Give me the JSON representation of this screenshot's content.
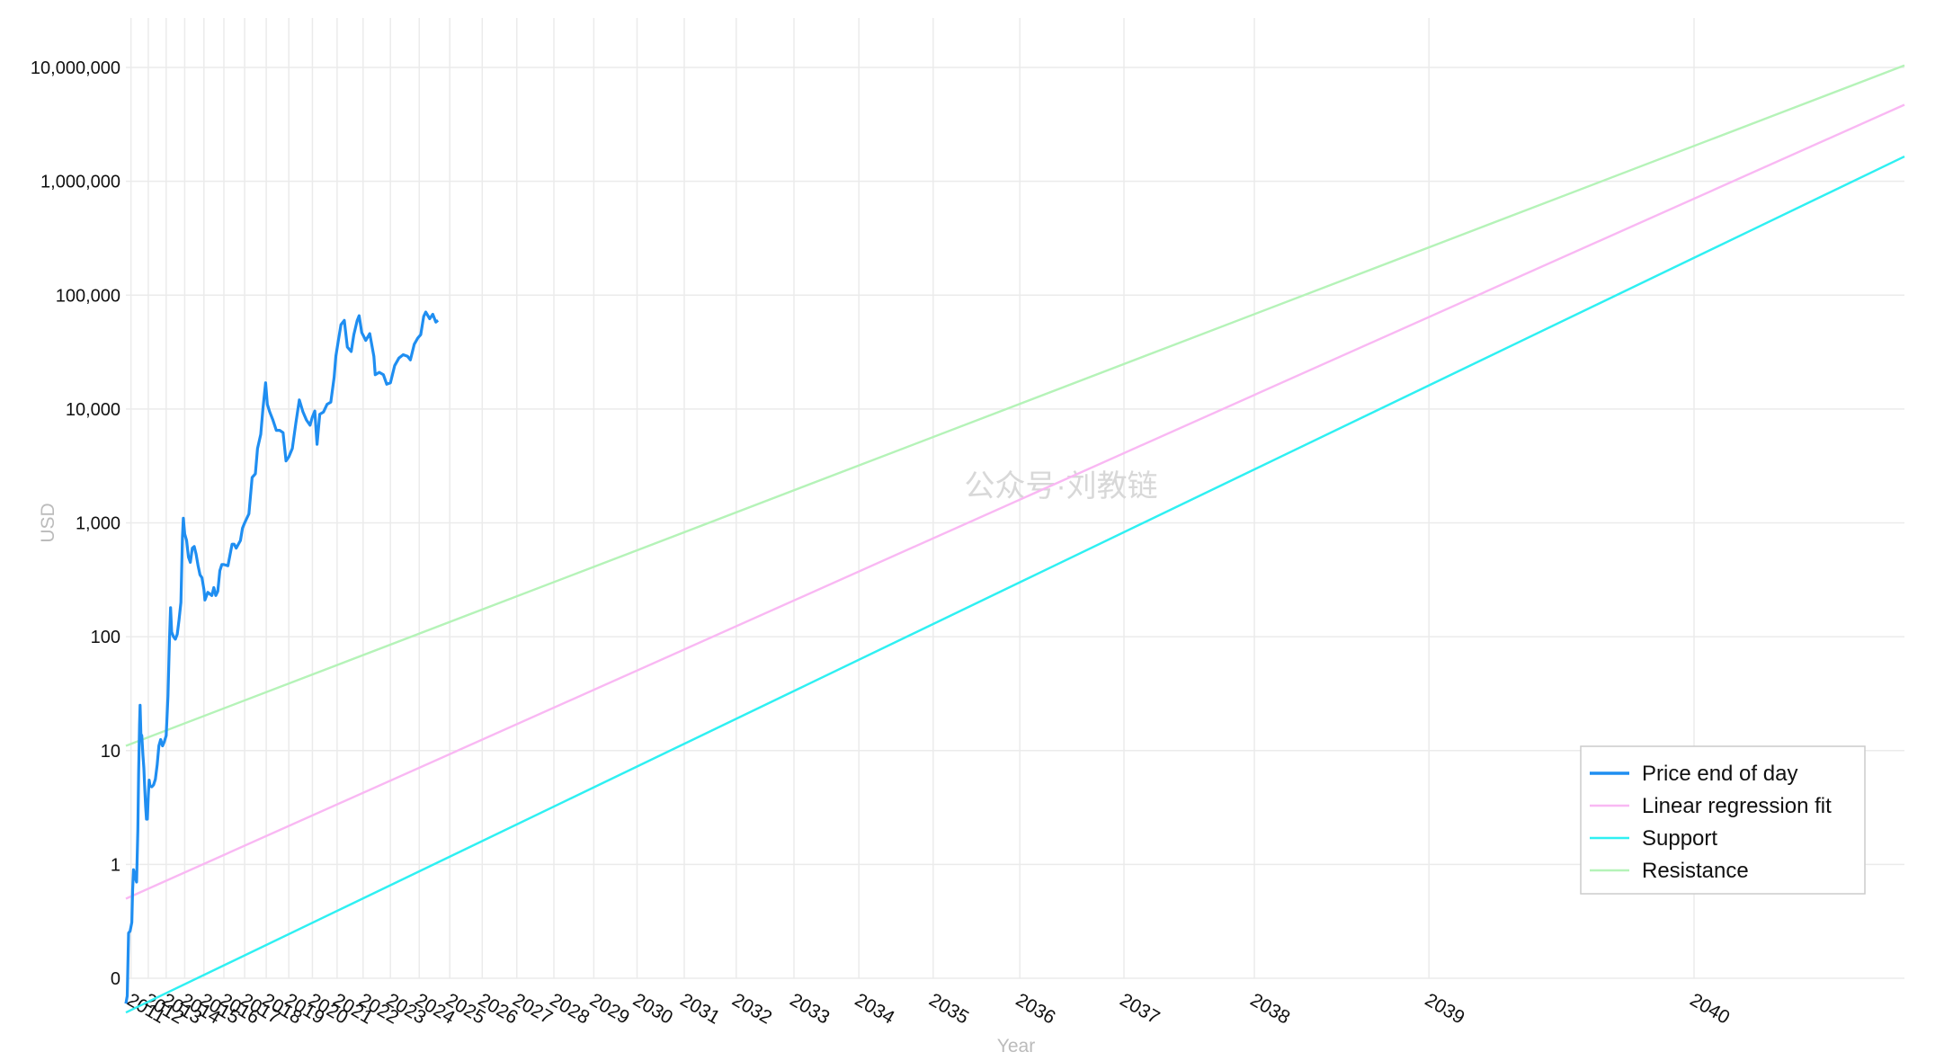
{
  "chart_data": {
    "type": "line",
    "title": "",
    "xlabel": "Year",
    "ylabel": "USD",
    "y_scale": "log",
    "x_scale": "log-time",
    "ylim": [
      0.1,
      10000000
    ],
    "y_ticks": [
      {
        "value": 0.1,
        "label": "0"
      },
      {
        "value": 1,
        "label": "1"
      },
      {
        "value": 10,
        "label": "10"
      },
      {
        "value": 100,
        "label": "100"
      },
      {
        "value": 1000,
        "label": "1,000"
      },
      {
        "value": 10000,
        "label": "10,000"
      },
      {
        "value": 100000,
        "label": "100,000"
      },
      {
        "value": 1000000,
        "label": "1,000,000"
      },
      {
        "value": 10000000,
        "label": "10,000,000"
      }
    ],
    "x_ticks": [
      "2011",
      "2012",
      "2013",
      "2014",
      "2015",
      "2016",
      "2017",
      "2018",
      "2019",
      "2020",
      "2021",
      "2022",
      "2023",
      "2024",
      "2025",
      "2026",
      "2027",
      "2028",
      "2029",
      "2030",
      "2031",
      "2032",
      "2033",
      "2034",
      "2035",
      "2036",
      "2037",
      "2038",
      "2039",
      "2040"
    ],
    "grid": true,
    "legend_position": "bottom-right",
    "watermark": "公众号·刘教链",
    "series": [
      {
        "name": "Price end of day",
        "color": "#1f8ef1",
        "points": [
          [
            2010.7,
            0.06
          ],
          [
            2010.78,
            0.07
          ],
          [
            2010.86,
            0.25
          ],
          [
            2010.95,
            0.26
          ],
          [
            2011.05,
            0.31
          ],
          [
            2011.1,
            0.6
          ],
          [
            2011.15,
            0.9
          ],
          [
            2011.25,
            0.78
          ],
          [
            2011.3,
            0.72
          ],
          [
            2011.33,
            0.7
          ],
          [
            2011.4,
            2.0
          ],
          [
            2011.45,
            6.5
          ],
          [
            2011.5,
            17.0
          ],
          [
            2011.53,
            25.0
          ],
          [
            2011.58,
            14.0
          ],
          [
            2011.63,
            13.5
          ],
          [
            2011.7,
            9.0
          ],
          [
            2011.75,
            7.0
          ],
          [
            2011.8,
            4.6
          ],
          [
            2011.85,
            3.2
          ],
          [
            2011.9,
            2.5
          ],
          [
            2011.95,
            2.5
          ],
          [
            2012.0,
            4.0
          ],
          [
            2012.05,
            5.5
          ],
          [
            2012.1,
            4.9
          ],
          [
            2012.2,
            4.8
          ],
          [
            2012.3,
            5.0
          ],
          [
            2012.4,
            5.6
          ],
          [
            2012.5,
            7.5
          ],
          [
            2012.6,
            11.0
          ],
          [
            2012.7,
            12.5
          ],
          [
            2012.8,
            11.0
          ],
          [
            2012.9,
            12.0
          ],
          [
            2013.0,
            13.5
          ],
          [
            2013.1,
            30.0
          ],
          [
            2013.18,
            90.0
          ],
          [
            2013.24,
            180.0
          ],
          [
            2013.3,
            110.0
          ],
          [
            2013.4,
            100.0
          ],
          [
            2013.5,
            95.0
          ],
          [
            2013.6,
            105.0
          ],
          [
            2013.7,
            140.0
          ],
          [
            2013.8,
            200.0
          ],
          [
            2013.88,
            750.0
          ],
          [
            2013.93,
            1100.0
          ],
          [
            2014.0,
            800.0
          ],
          [
            2014.1,
            700.0
          ],
          [
            2014.2,
            500.0
          ],
          [
            2014.3,
            450.0
          ],
          [
            2014.4,
            600.0
          ],
          [
            2014.5,
            620.0
          ],
          [
            2014.6,
            530.0
          ],
          [
            2014.7,
            420.0
          ],
          [
            2014.8,
            350.0
          ],
          [
            2014.9,
            330.0
          ],
          [
            2015.0,
            260.0
          ],
          [
            2015.05,
            210.0
          ],
          [
            2015.2,
            245.0
          ],
          [
            2015.4,
            230.0
          ],
          [
            2015.5,
            270.0
          ],
          [
            2015.6,
            230.0
          ],
          [
            2015.7,
            250.0
          ],
          [
            2015.8,
            380.0
          ],
          [
            2015.9,
            430.0
          ],
          [
            2016.0,
            430.0
          ],
          [
            2016.2,
            420.0
          ],
          [
            2016.4,
            650.0
          ],
          [
            2016.5,
            650.0
          ],
          [
            2016.6,
            600.0
          ],
          [
            2016.8,
            700.0
          ],
          [
            2016.9,
            900.0
          ],
          [
            2017.0,
            1000.0
          ],
          [
            2017.2,
            1200.0
          ],
          [
            2017.35,
            2500.0
          ],
          [
            2017.5,
            2700.0
          ],
          [
            2017.6,
            4500.0
          ],
          [
            2017.75,
            6000.0
          ],
          [
            2017.85,
            10000.0
          ],
          [
            2017.97,
            17000.0
          ],
          [
            2018.05,
            11000.0
          ],
          [
            2018.15,
            9500.0
          ],
          [
            2018.3,
            8000.0
          ],
          [
            2018.45,
            6500.0
          ],
          [
            2018.6,
            6500.0
          ],
          [
            2018.75,
            6200.0
          ],
          [
            2018.88,
            3500.0
          ],
          [
            2019.0,
            3800.0
          ],
          [
            2019.15,
            4500.0
          ],
          [
            2019.3,
            7500.0
          ],
          [
            2019.45,
            12000.0
          ],
          [
            2019.6,
            9500.0
          ],
          [
            2019.75,
            8000.0
          ],
          [
            2019.9,
            7200.0
          ],
          [
            2020.0,
            8500.0
          ],
          [
            2020.1,
            9600.0
          ],
          [
            2020.19,
            4900.0
          ],
          [
            2020.3,
            9000.0
          ],
          [
            2020.45,
            9400.0
          ],
          [
            2020.6,
            11000.0
          ],
          [
            2020.75,
            11500.0
          ],
          [
            2020.88,
            19000.0
          ],
          [
            2020.95,
            29000.0
          ],
          [
            2021.05,
            40000.0
          ],
          [
            2021.15,
            55000.0
          ],
          [
            2021.28,
            60000.0
          ],
          [
            2021.4,
            35000.0
          ],
          [
            2021.55,
            32000.0
          ],
          [
            2021.65,
            45000.0
          ],
          [
            2021.78,
            60000.0
          ],
          [
            2021.85,
            66000.0
          ],
          [
            2021.95,
            47000.0
          ],
          [
            2022.1,
            40000.0
          ],
          [
            2022.25,
            46000.0
          ],
          [
            2022.4,
            29000.0
          ],
          [
            2022.45,
            20000.0
          ],
          [
            2022.6,
            21000.0
          ],
          [
            2022.75,
            20000.0
          ],
          [
            2022.87,
            16500.0
          ],
          [
            2023.0,
            17000.0
          ],
          [
            2023.15,
            24000.0
          ],
          [
            2023.3,
            28000.0
          ],
          [
            2023.45,
            30000.0
          ],
          [
            2023.6,
            29000.0
          ],
          [
            2023.7,
            27000.0
          ],
          [
            2023.83,
            37000.0
          ],
          [
            2023.95,
            42000.0
          ],
          [
            2024.05,
            45000.0
          ],
          [
            2024.15,
            65000.0
          ],
          [
            2024.22,
            71000.0
          ],
          [
            2024.35,
            62000.0
          ],
          [
            2024.45,
            68000.0
          ],
          [
            2024.55,
            58000.0
          ],
          [
            2024.62,
            60000.0
          ]
        ]
      },
      {
        "name": "Linear regression fit",
        "color": "#f9b8f3",
        "points": [
          [
            2010.7,
            0.5
          ],
          [
            2040.5,
            4700000.0
          ]
        ]
      },
      {
        "name": "Support",
        "color": "#2ff0f2",
        "points": [
          [
            2010.7,
            0.05
          ],
          [
            2040.5,
            1650000.0
          ]
        ]
      },
      {
        "name": "Resistance",
        "color": "#b5f3b8",
        "points": [
          [
            2010.7,
            11.0
          ],
          [
            2040.5,
            10400000.0
          ]
        ]
      }
    ]
  }
}
